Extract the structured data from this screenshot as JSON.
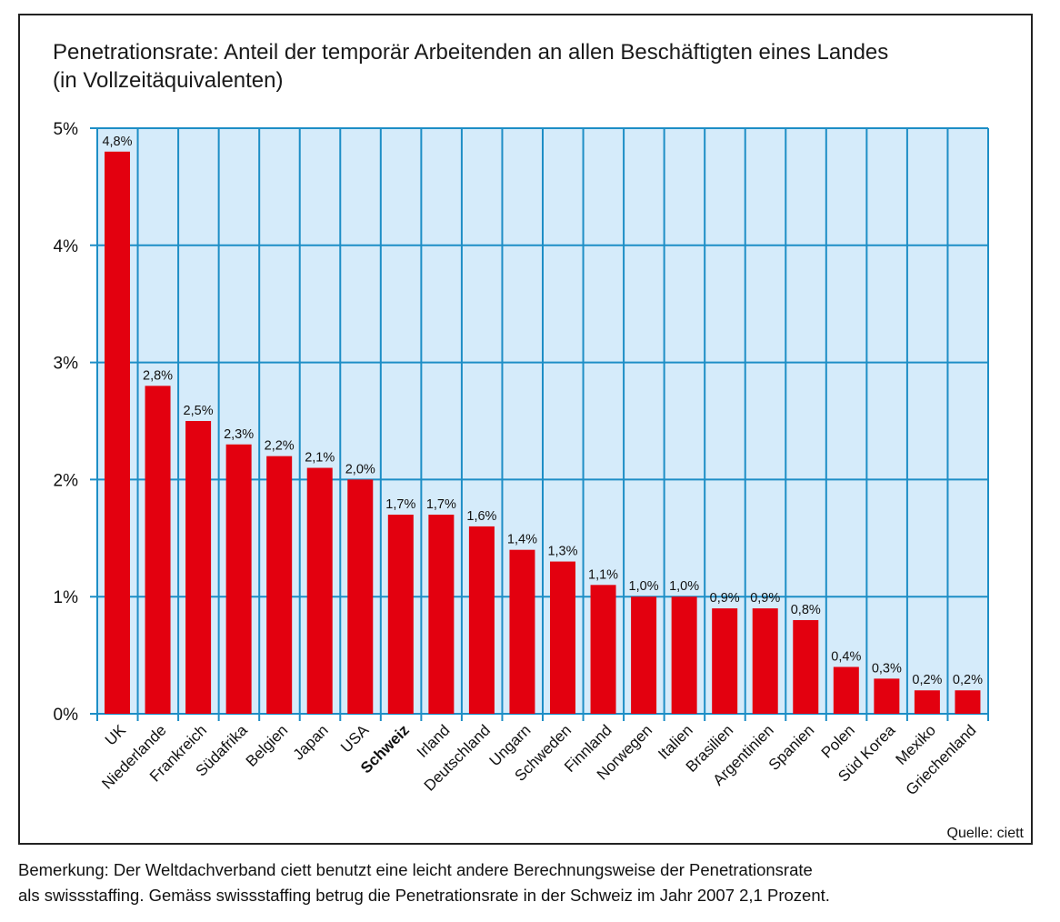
{
  "chart_data": {
    "type": "bar",
    "title": "Penetrationsrate: Anteil der temporär Arbeitenden an allen Beschäftigten eines Landes",
    "subtitle": "(in Vollzeitäquivalenten)",
    "categories": [
      "UK",
      "Niederlande",
      "Frankreich",
      "Südafrika",
      "Belgien",
      "Japan",
      "USA",
      "Schweiz",
      "Irland",
      "Deutschland",
      "Ungarn",
      "Schweden",
      "Finnland",
      "Norwegen",
      "Italien",
      "Brasilien",
      "Argentinien",
      "Spanien",
      "Polen",
      "Süd Korea",
      "Mexiko",
      "Griechenland"
    ],
    "highlighted_category": "Schweiz",
    "values": [
      4.8,
      2.8,
      2.5,
      2.3,
      2.2,
      2.1,
      2.0,
      1.7,
      1.7,
      1.6,
      1.4,
      1.3,
      1.1,
      1.0,
      1.0,
      0.9,
      0.9,
      0.8,
      0.4,
      0.3,
      0.2,
      0.2
    ],
    "data_labels": [
      "4,8%",
      "2,8%",
      "2,5%",
      "2,3%",
      "2,2%",
      "2,1%",
      "2,0%",
      "1,7%",
      "1,7%",
      "1,6%",
      "1,4%",
      "1,3%",
      "1,1%",
      "1,0%",
      "1,0%",
      "0,9%",
      "0,9%",
      "0,8%",
      "0,4%",
      "0,3%",
      "0,2%",
      "0,2%"
    ],
    "xlabel": "",
    "ylabel": "",
    "ylim": [
      0,
      5
    ],
    "yticks": [
      "0%",
      "1%",
      "2%",
      "3%",
      "4%",
      "5%"
    ],
    "grid": true,
    "colors": {
      "bar": "#e3000f",
      "plot_background": "#d5ebfa",
      "grid": "#1d8ec6"
    }
  },
  "source": "Quelle: ciett",
  "note": [
    "Bemerkung: Der Weltdachverband ciett benutzt eine leicht andere Berechnungsweise der Penetrationsrate",
    "als swissstaffing. Gemäss swissstaffing betrug die Penetrationsrate in der Schweiz im Jahr 2007 2,1 Prozent."
  ]
}
